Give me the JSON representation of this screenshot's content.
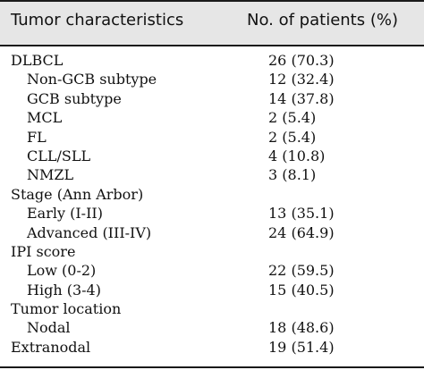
{
  "header": {
    "col1": "Tumor characteristics",
    "col2": "No. of patients (%)"
  },
  "rows": [
    {
      "label": "DLBCL",
      "value": "26 (70.3)",
      "indent": false
    },
    {
      "label": "Non-GCB subtype",
      "value": "12 (32.4)",
      "indent": true
    },
    {
      "label": "GCB subtype",
      "value": "14 (37.8)",
      "indent": true
    },
    {
      "label": "MCL",
      "value": "2 (5.4)",
      "indent": true
    },
    {
      "label": "FL",
      "value": "2 (5.4)",
      "indent": true
    },
    {
      "label": "CLL/SLL",
      "value": "4 (10.8)",
      "indent": true
    },
    {
      "label": "NMZL",
      "value": "3 (8.1)",
      "indent": true
    },
    {
      "label": "Stage (Ann Arbor)",
      "value": "",
      "indent": false
    },
    {
      "label": "Early (I-II)",
      "value": "13 (35.1)",
      "indent": true
    },
    {
      "label": "Advanced (III-IV)",
      "value": "24 (64.9)",
      "indent": true
    },
    {
      "label": "IPI score",
      "value": "",
      "indent": false
    },
    {
      "label": "Low (0-2)",
      "value": "22 (59.5)",
      "indent": true
    },
    {
      "label": "High (3-4)",
      "value": "15 (40.5)",
      "indent": true
    },
    {
      "label": "Tumor location",
      "value": "",
      "indent": false
    },
    {
      "label": "Nodal",
      "value": "18 (48.6)",
      "indent": true
    },
    {
      "label": "Extranodal",
      "value": "19 (51.4)",
      "indent": false
    }
  ]
}
